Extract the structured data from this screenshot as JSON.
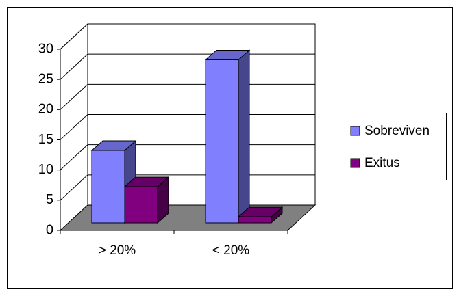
{
  "chart_data": {
    "type": "bar3d",
    "categories": [
      "> 20%",
      "< 20%"
    ],
    "series": [
      {
        "name": "Sobreviven",
        "color": "#8080ff",
        "values": [
          12,
          27
        ]
      },
      {
        "name": "Exitus",
        "color": "#800080",
        "values": [
          6,
          1
        ]
      }
    ],
    "ylim": [
      0,
      30
    ],
    "yticks": [
      0,
      5,
      10,
      15,
      20,
      25,
      30
    ],
    "grid": true,
    "legend": "right"
  }
}
